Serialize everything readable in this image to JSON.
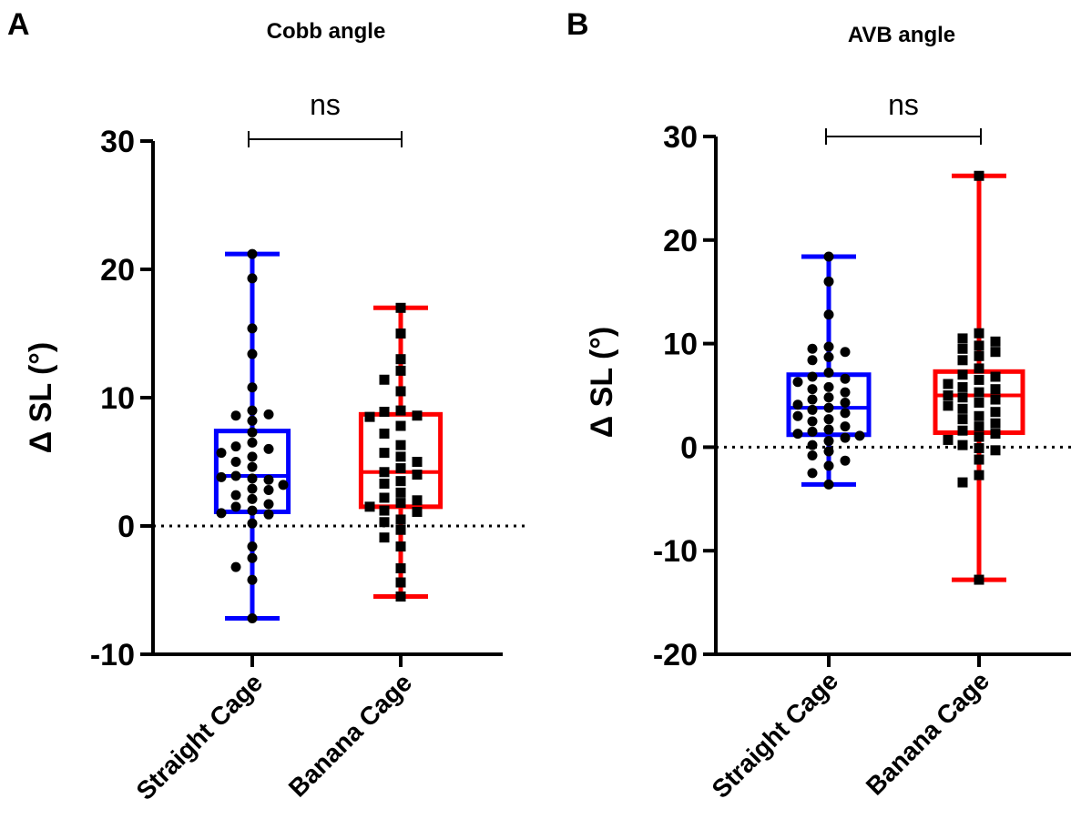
{
  "chart_data": [
    {
      "panel_label": "A",
      "type": "box",
      "title": "Cobb angle",
      "ylabel": "Δ SL (°)",
      "ylim": [
        -10,
        30
      ],
      "yticks": [
        "30",
        "20",
        "10",
        "0",
        "-10"
      ],
      "ytick_values": [
        30,
        20,
        10,
        0,
        -10
      ],
      "categories": [
        "Straight Cage",
        "Banana Cage"
      ],
      "reference_line": 0,
      "significance": "ns",
      "series": [
        {
          "color": "#0000ff",
          "marker": "circle",
          "min": -7.2,
          "q1": 1.1,
          "median": 3.9,
          "q3": 7.4,
          "max": 21.2,
          "points": [
            21.2,
            19.3,
            15.4,
            13.4,
            10.8,
            9.0,
            8.6,
            8.7,
            8.2,
            7.3,
            6.5,
            6.2,
            6.0,
            5.4,
            5.7,
            5.0,
            4.6,
            3.9,
            3.7,
            3.6,
            3.8,
            3.2,
            2.9,
            2.4,
            2.8,
            2.1,
            1.7,
            1.5,
            1.2,
            1.0,
            0.9,
            0.2,
            -1.6,
            -2.5,
            -3.2,
            -4.2,
            -7.2
          ]
        },
        {
          "color": "#ff0000",
          "marker": "square",
          "min": -5.5,
          "q1": 1.5,
          "median": 4.2,
          "q3": 8.7,
          "max": 17.0,
          "points": [
            17.0,
            15.0,
            13.0,
            12.1,
            11.4,
            10.5,
            9.0,
            8.9,
            8.6,
            8.5,
            7.8,
            7.2,
            6.3,
            5.7,
            5.4,
            5.0,
            4.5,
            4.2,
            4.0,
            3.5,
            3.3,
            2.6,
            2.2,
            2.0,
            1.8,
            1.5,
            1.2,
            1.1,
            0.5,
            0.3,
            -0.3,
            -0.9,
            -1.6,
            -3.3,
            -4.4,
            -5.5
          ]
        }
      ]
    },
    {
      "panel_label": "B",
      "type": "box",
      "title": "AVB angle",
      "ylabel": "Δ SL (°)",
      "ylim": [
        -20,
        30
      ],
      "yticks": [
        "30",
        "20",
        "10",
        "0",
        "-10",
        "-20"
      ],
      "ytick_values": [
        30,
        20,
        10,
        0,
        -10,
        -20
      ],
      "categories": [
        "Straight Cage",
        "Banana Cage"
      ],
      "reference_line": 0,
      "significance": "ns",
      "series": [
        {
          "color": "#0000ff",
          "marker": "circle",
          "min": -3.6,
          "q1": 1.2,
          "median": 3.8,
          "q3": 7.0,
          "max": 18.4,
          "points": [
            18.4,
            16.0,
            12.8,
            9.7,
            9.5,
            9.2,
            8.7,
            8.4,
            7.2,
            6.8,
            6.6,
            6.3,
            5.8,
            5.6,
            5.3,
            4.8,
            4.6,
            4.3,
            4.1,
            3.8,
            3.6,
            3.3,
            3.0,
            2.7,
            2.5,
            2.0,
            1.7,
            1.5,
            1.3,
            1.1,
            0.9,
            0.6,
            0.2,
            -0.4,
            -0.8,
            -1.3,
            -1.8,
            -2.5,
            -3.6
          ]
        },
        {
          "color": "#ff0000",
          "marker": "square",
          "min": -12.8,
          "q1": 1.4,
          "median": 5.0,
          "q3": 7.3,
          "max": 26.2,
          "points": [
            26.2,
            11.0,
            10.5,
            10.2,
            9.8,
            9.5,
            9.2,
            8.8,
            8.4,
            7.6,
            7.0,
            6.8,
            6.5,
            6.1,
            5.8,
            5.6,
            5.3,
            5.0,
            4.8,
            4.6,
            4.3,
            4.0,
            3.7,
            3.4,
            3.0,
            2.7,
            2.3,
            2.0,
            1.6,
            1.3,
            1.0,
            0.7,
            0.2,
            -0.1,
            -0.3,
            -1.2,
            -2.7,
            -3.4,
            -12.8
          ]
        }
      ]
    }
  ]
}
